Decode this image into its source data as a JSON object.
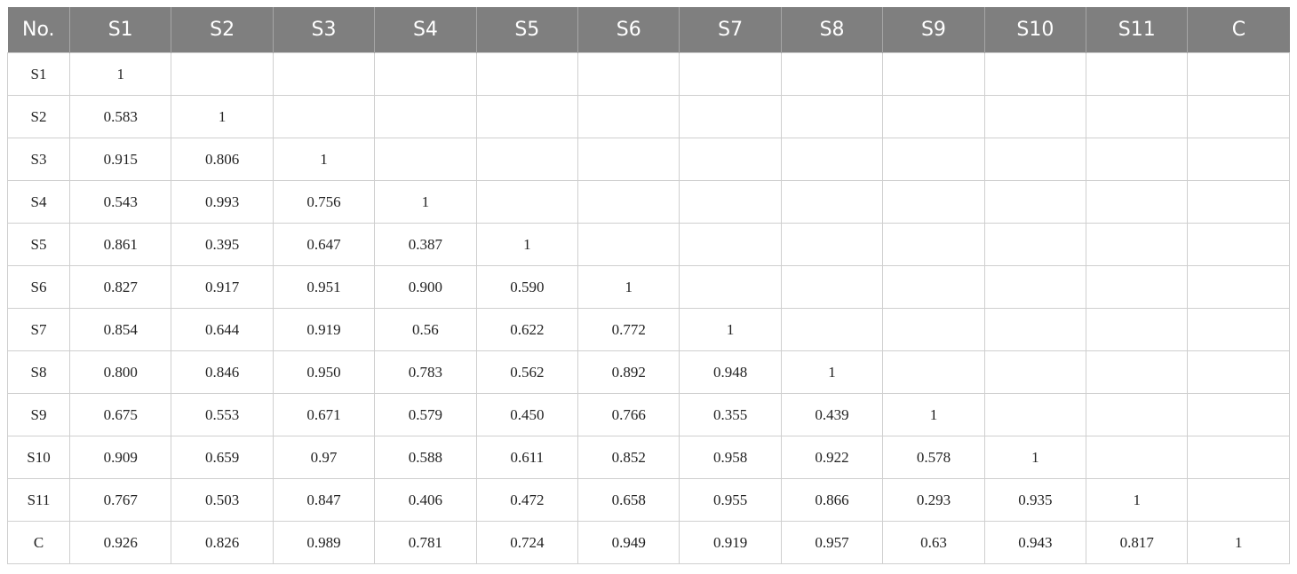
{
  "table": {
    "header": [
      "No.",
      "S1",
      "S2",
      "S3",
      "S4",
      "S5",
      "S6",
      "S7",
      "S8",
      "S9",
      "S10",
      "S11",
      "C"
    ],
    "rows": [
      [
        "S1",
        "1"
      ],
      [
        "S2",
        "0.583",
        "1"
      ],
      [
        "S3",
        "0.915",
        "0.806",
        "1"
      ],
      [
        "S4",
        "0.543",
        "0.993",
        "0.756",
        "1"
      ],
      [
        "S5",
        "0.861",
        "0.395",
        "0.647",
        "0.387",
        "1"
      ],
      [
        "S6",
        "0.827",
        "0.917",
        "0.951",
        "0.900",
        "0.590",
        "1"
      ],
      [
        "S7",
        "0.854",
        "0.644",
        "0.919",
        "0.56",
        "0.622",
        "0.772",
        "1"
      ],
      [
        "S8",
        "0.800",
        "0.846",
        "0.950",
        "0.783",
        "0.562",
        "0.892",
        "0.948",
        "1"
      ],
      [
        "S9",
        "0.675",
        "0.553",
        "0.671",
        "0.579",
        "0.450",
        "0.766",
        "0.355",
        "0.439",
        "1"
      ],
      [
        "S10",
        "0.909",
        "0.659",
        "0.97",
        "0.588",
        "0.611",
        "0.852",
        "0.958",
        "0.922",
        "0.578",
        "1"
      ],
      [
        "S11",
        "0.767",
        "0.503",
        "0.847",
        "0.406",
        "0.472",
        "0.658",
        "0.955",
        "0.866",
        "0.293",
        "0.935",
        "1"
      ],
      [
        "C",
        "0.926",
        "0.826",
        "0.989",
        "0.781",
        "0.724",
        "0.949",
        "0.919",
        "0.957",
        "0.63",
        "0.943",
        "0.817",
        "1"
      ]
    ]
  }
}
